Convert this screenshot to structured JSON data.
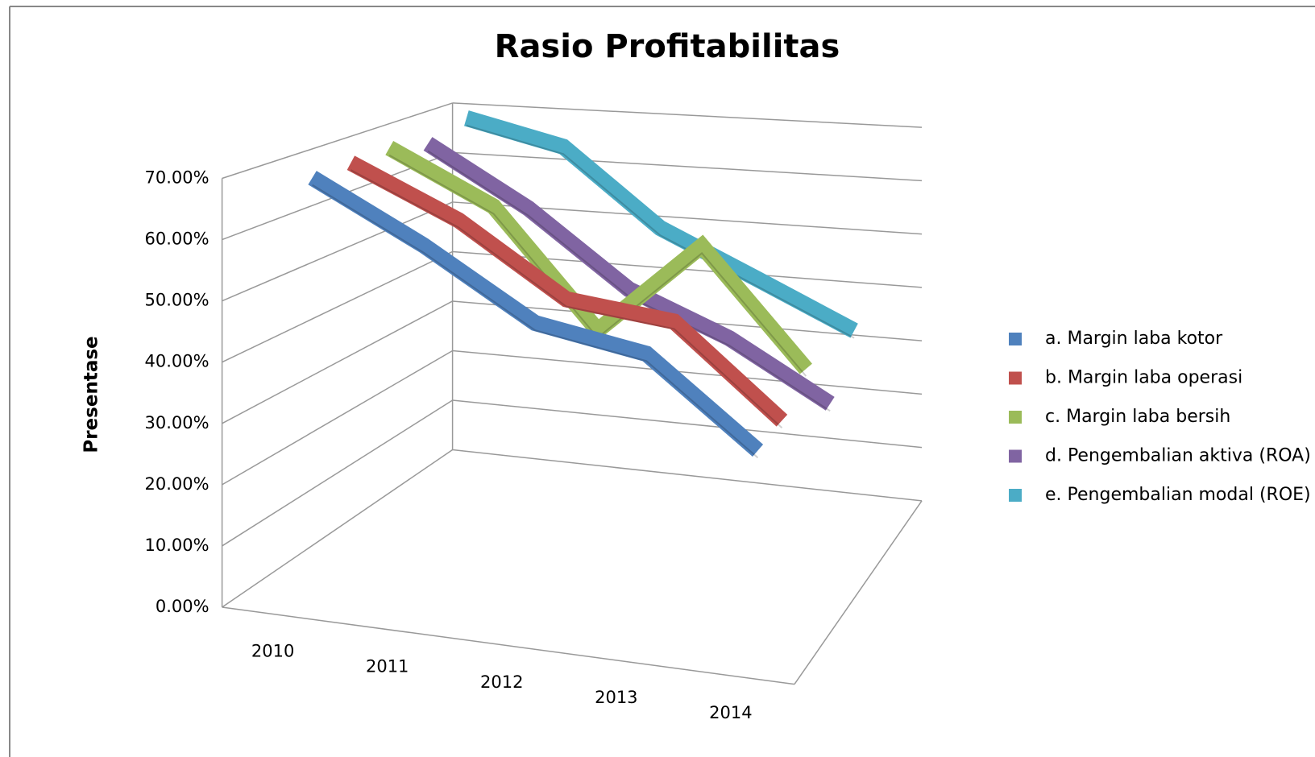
{
  "chart_data": {
    "type": "line3d",
    "title": "Rasio Profitabilitas",
    "y_label": "Presentase",
    "categories": [
      "2010",
      "2011",
      "2012",
      "2013",
      "2014"
    ],
    "series": [
      {
        "name": "a. Margin laba kotor",
        "color": "#4f81bd",
        "values": [
          70,
          62,
          52,
          50,
          36
        ]
      },
      {
        "name": "b. Margin laba operasi",
        "color": "#c0504d",
        "values": [
          70,
          63,
          52,
          51,
          36
        ]
      },
      {
        "name": "c. Margin laba bersih",
        "color": "#9bbb59",
        "values": [
          70,
          62,
          42,
          60,
          40
        ]
      },
      {
        "name": "d. Pengembalian aktiva (ROA)",
        "color": "#8064a2",
        "values": [
          68,
          58,
          45,
          38,
          28
        ]
      },
      {
        "name": "e. Pengembalian modal (ROE)",
        "color": "#4bacc6",
        "values": [
          70,
          66,
          52,
          44,
          36
        ]
      }
    ],
    "ylim": [
      0,
      70
    ],
    "yticks": [
      {
        "value": 0,
        "label": "0.00%"
      },
      {
        "value": 10,
        "label": "10.00%"
      },
      {
        "value": 20,
        "label": "20.00%"
      },
      {
        "value": 30,
        "label": "30.00%"
      },
      {
        "value": 40,
        "label": "40.00%"
      },
      {
        "value": 50,
        "label": "50.00%"
      },
      {
        "value": 60,
        "label": "60.00%"
      },
      {
        "value": 70,
        "label": "70.00%"
      }
    ],
    "grid": true,
    "legend": "right"
  }
}
